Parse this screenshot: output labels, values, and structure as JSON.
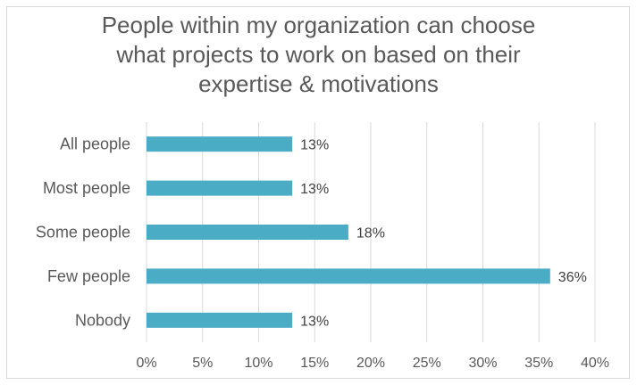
{
  "chart_data": {
    "type": "bar",
    "orientation": "horizontal",
    "title_lines": [
      "People within my organization can choose",
      "what projects to work on based on their",
      "expertise & motivations"
    ],
    "categories": [
      "All people",
      "Most people",
      "Some people",
      "Few people",
      "Nobody"
    ],
    "values": [
      13,
      13,
      18,
      36,
      13
    ],
    "value_labels": [
      "13%",
      "13%",
      "18%",
      "36%",
      "13%"
    ],
    "x_ticks": [
      "0%",
      "5%",
      "10%",
      "15%",
      "20%",
      "25%",
      "30%",
      "35%",
      "40%"
    ],
    "xlim": [
      0,
      40
    ],
    "grid": "vertical",
    "legend": "none",
    "bar_color": "#4bacc6",
    "grid_color": "#d9d9d9",
    "text_color": "#595959"
  }
}
